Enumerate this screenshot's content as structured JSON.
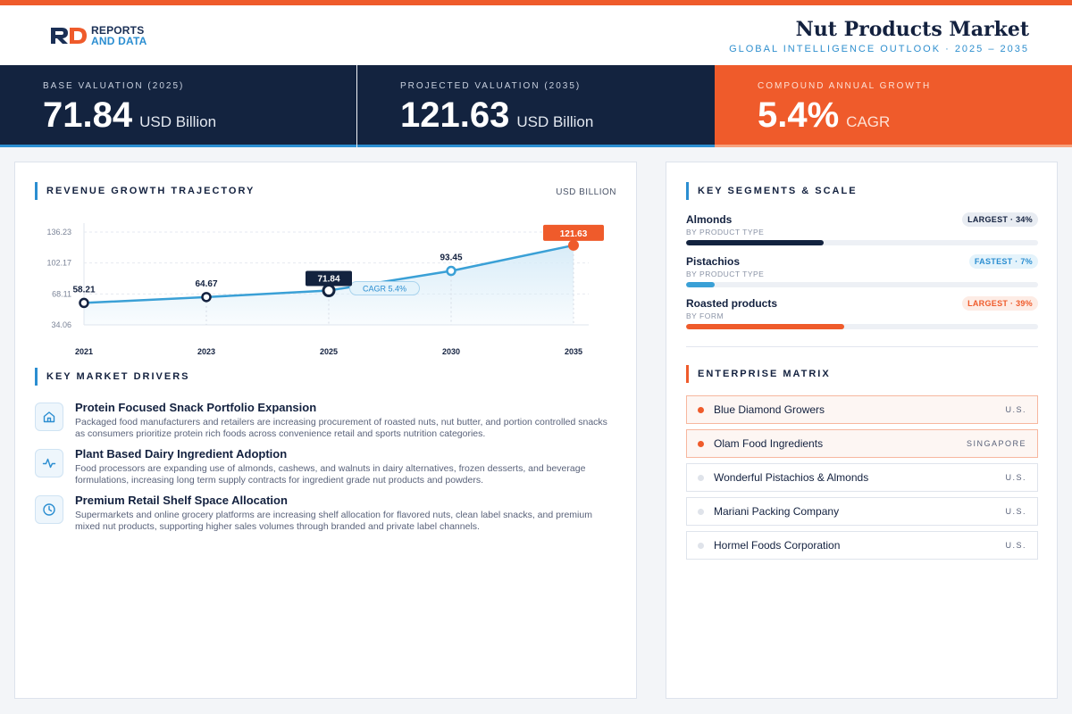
{
  "header": {
    "logo_line1": "REPORTS",
    "logo_line2": "AND DATA",
    "title": "Nut Products Market",
    "subtitle": "GLOBAL INTELLIGENCE OUTLOOK  ·  2025 – 2035"
  },
  "kpis": [
    {
      "label": "BASE VALUATION (2025)",
      "value": "71.84",
      "unit": "USD Billion"
    },
    {
      "label": "PROJECTED VALUATION (2035)",
      "value": "121.63",
      "unit": "USD Billion"
    },
    {
      "label": "COMPOUND ANNUAL GROWTH",
      "value": "5.4%",
      "unit": "CAGR"
    }
  ],
  "revenue": {
    "section_title": "REVENUE GROWTH TRAJECTORY",
    "unit_label": "USD BILLION"
  },
  "chart_data": {
    "type": "area",
    "title": "REVENUE GROWTH TRAJECTORY",
    "ylabel": "USD BILLION",
    "categories": [
      "2021",
      "2023",
      "2025",
      "2030",
      "2035"
    ],
    "values": [
      58.21,
      64.67,
      71.84,
      93.45,
      121.63
    ],
    "value_labels": [
      "58.21",
      "64.67",
      "71.84",
      "93.45",
      "121.63"
    ],
    "yticks": [
      34.06,
      68.11,
      102.17,
      136.23
    ],
    "ytick_labels": [
      "34.06",
      "68.11",
      "102.17",
      "136.23"
    ],
    "ylim": [
      34.06,
      136.23
    ],
    "grid": true,
    "annotation": "CAGR 5.4%",
    "colors": {
      "line": "#3aa0d6",
      "area": "#d8ecf8",
      "highlight": "#13233f",
      "accent": "#ef5b2b"
    }
  },
  "drivers": {
    "section_title": "KEY MARKET DRIVERS",
    "items": [
      {
        "icon": "home-icon",
        "title": "Protein Focused Snack Portfolio Expansion",
        "desc": "Packaged food manufacturers and retailers are increasing procurement of roasted nuts, nut butter, and portion controlled snacks as consumers prioritize protein rich foods across convenience retail and sports nutrition categories."
      },
      {
        "icon": "activity-icon",
        "title": "Plant Based Dairy Ingredient Adoption",
        "desc": "Food processors are expanding use of almonds, cashews, and walnuts in dairy alternatives, frozen desserts, and beverage formulations, increasing long term supply contracts for ingredient grade nut products and powders."
      },
      {
        "icon": "clock-icon",
        "title": "Premium Retail Shelf Space Allocation",
        "desc": "Supermarkets and online grocery platforms are increasing shelf allocation for flavored nuts, clean label snacks, and premium mixed nut products, supporting higher sales volumes through branded and private label channels."
      }
    ]
  },
  "segments": {
    "section_title": "KEY SEGMENTS & SCALE",
    "items": [
      {
        "name": "Almonds",
        "sub": "BY PRODUCT TYPE",
        "badge": "LARGEST · 34%",
        "share": 0.34,
        "color": "#13233f"
      },
      {
        "name": "Pistachios",
        "sub": "BY PRODUCT TYPE",
        "badge": "FASTEST · 7%",
        "share": 0.07,
        "color": "#3aa0d6"
      },
      {
        "name": "Roasted products",
        "sub": "BY FORM",
        "badge": "LARGEST · 39%",
        "share": 0.39,
        "color": "#ef5b2b"
      }
    ]
  },
  "enterprise": {
    "section_title": "ENTERPRISE MATRIX",
    "items": [
      {
        "name": "Blue Diamond Growers",
        "country": "U.S.",
        "highlight": true
      },
      {
        "name": "Olam Food Ingredients",
        "country": "SINGAPORE",
        "highlight": true
      },
      {
        "name": "Wonderful Pistachios & Almonds",
        "country": "U.S.",
        "highlight": false
      },
      {
        "name": "Mariani Packing Company",
        "country": "U.S.",
        "highlight": false
      },
      {
        "name": "Hormel Foods Corporation",
        "country": "U.S.",
        "highlight": false
      }
    ]
  }
}
